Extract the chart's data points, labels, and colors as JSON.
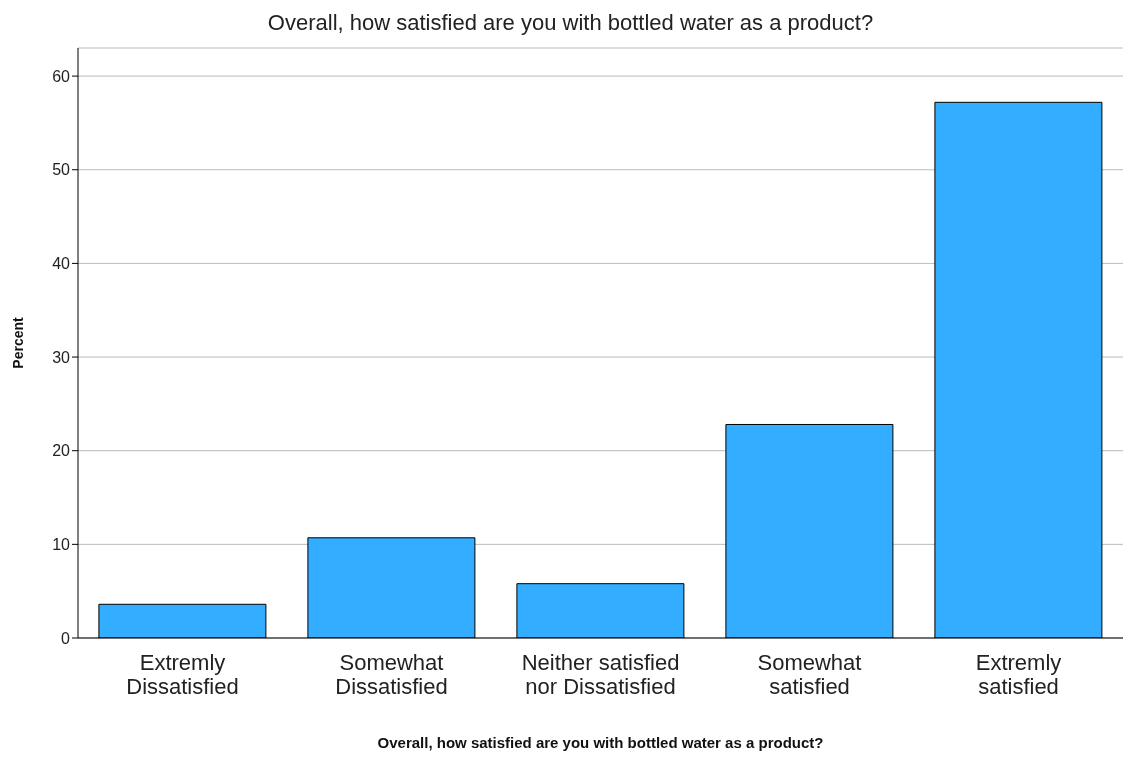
{
  "chart_data": {
    "type": "bar",
    "title": "Overall, how satisfied are you with bottled water as a product?",
    "xlabel": "Overall, how satisfied are you with bottled water as a product?",
    "ylabel": "Percent",
    "categories": [
      "Extremly Dissatisfied",
      "Somewhat Dissatisfied",
      "Neither satisfied nor Dissatisfied",
      "Somewhat satisfied",
      "Extremly satisfied"
    ],
    "values": [
      3.6,
      10.7,
      5.8,
      22.8,
      57.2
    ],
    "color": "#33adff",
    "ylim": [
      0,
      63
    ],
    "yticks": [
      0,
      10,
      20,
      30,
      40,
      50,
      60
    ],
    "grid": "y"
  }
}
